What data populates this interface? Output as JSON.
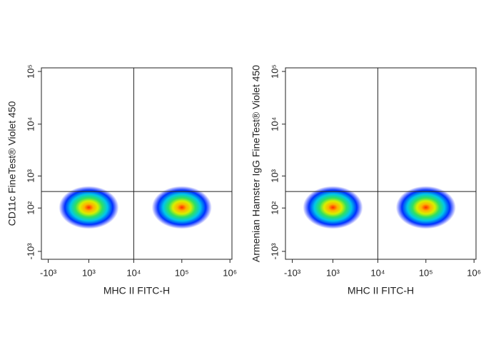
{
  "chart_data": [
    {
      "type": "scatter",
      "x_label": "MHC II FITC-H",
      "y_label": "CD11c FineTest® Violet 450",
      "xlim": [
        -1500,
        1100000
      ],
      "ylim": [
        -1440,
        117000
      ],
      "xticks": [
        {
          "value": -1000,
          "label": "-10³"
        },
        {
          "value": 1000,
          "label": "10³"
        },
        {
          "value": 10000,
          "label": "10⁴"
        },
        {
          "value": 100000,
          "label": "10⁵"
        },
        {
          "value": 1000000,
          "label": "10⁶"
        }
      ],
      "yticks": [
        {
          "value": -1000,
          "label": "-10³"
        },
        {
          "value": 100,
          "label": "10²"
        },
        {
          "value": 1000,
          "label": "10³"
        },
        {
          "value": 10000,
          "label": "10⁴"
        },
        {
          "value": 100000,
          "label": "10⁵"
        }
      ],
      "x_gate": 10000,
      "y_gate": 450,
      "populations": {
        "x": [
          1000,
          100000
        ],
        "y": [
          110,
          110
        ]
      }
    },
    {
      "type": "scatter",
      "x_label": "MHC II FITC-H",
      "y_label": "Armenian Hamster IgG FineTest® Violet 450",
      "xlim": [
        -1500,
        1100000
      ],
      "ylim": [
        -1440,
        117000
      ],
      "xticks": [
        {
          "value": -1000,
          "label": "-10³"
        },
        {
          "value": 1000,
          "label": "10³"
        },
        {
          "value": 10000,
          "label": "10⁴"
        },
        {
          "value": 100000,
          "label": "10⁵"
        },
        {
          "value": 1000000,
          "label": "10⁶"
        }
      ],
      "yticks": [
        {
          "value": -1000,
          "label": "-10³"
        },
        {
          "value": 100,
          "label": "10²"
        },
        {
          "value": 1000,
          "label": "10³"
        },
        {
          "value": 10000,
          "label": "10⁴"
        },
        {
          "value": 100000,
          "label": "10⁵"
        }
      ],
      "x_gate": 10000,
      "y_gate": 450,
      "populations": {
        "x": [
          1000,
          100000
        ],
        "y": [
          110,
          110
        ]
      }
    }
  ]
}
